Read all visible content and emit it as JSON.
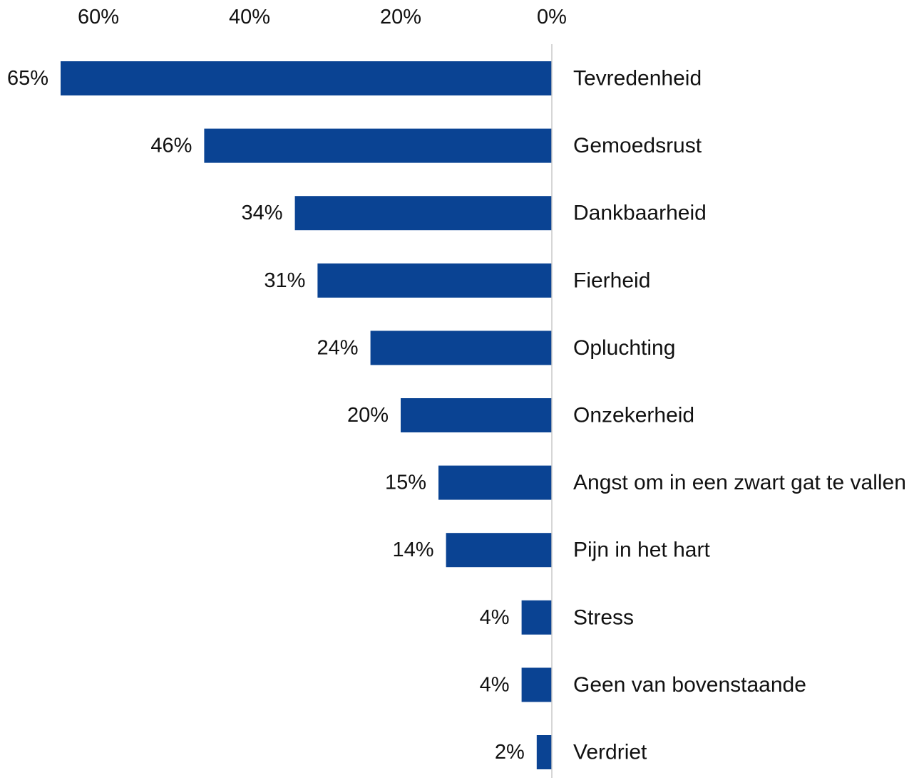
{
  "chart_data": {
    "type": "bar",
    "orientation": "horizontal",
    "direction": "right-to-left",
    "categories": [
      "Tevredenheid",
      "Gemoedsrust",
      "Dankbaarheid",
      "Fierheid",
      "Opluchting",
      "Onzekerheid",
      "Angst om in een zwart gat te vallen",
      "Pijn in het hart",
      "Stress",
      "Geen van bovenstaande",
      "Verdriet"
    ],
    "values": [
      65,
      46,
      34,
      31,
      24,
      20,
      15,
      14,
      4,
      4,
      2
    ],
    "data_labels": [
      "65%",
      "46%",
      "34%",
      "31%",
      "24%",
      "20%",
      "15%",
      "14%",
      "4%",
      "4%",
      "2%"
    ],
    "x_ticks": [
      {
        "value": 60,
        "label": "60%"
      },
      {
        "value": 40,
        "label": "40%"
      },
      {
        "value": 20,
        "label": "20%"
      },
      {
        "value": 0,
        "label": "0%"
      }
    ],
    "xlim": [
      0,
      70
    ],
    "x_axis_position": "top",
    "category_label_position": "right",
    "grid": false,
    "legend": "none",
    "title": "",
    "xlabel": "",
    "ylabel": "",
    "colors": {
      "bar": "#0a4393",
      "axis": "#c8c8c8",
      "text": "#111111",
      "background": "#ffffff"
    }
  }
}
